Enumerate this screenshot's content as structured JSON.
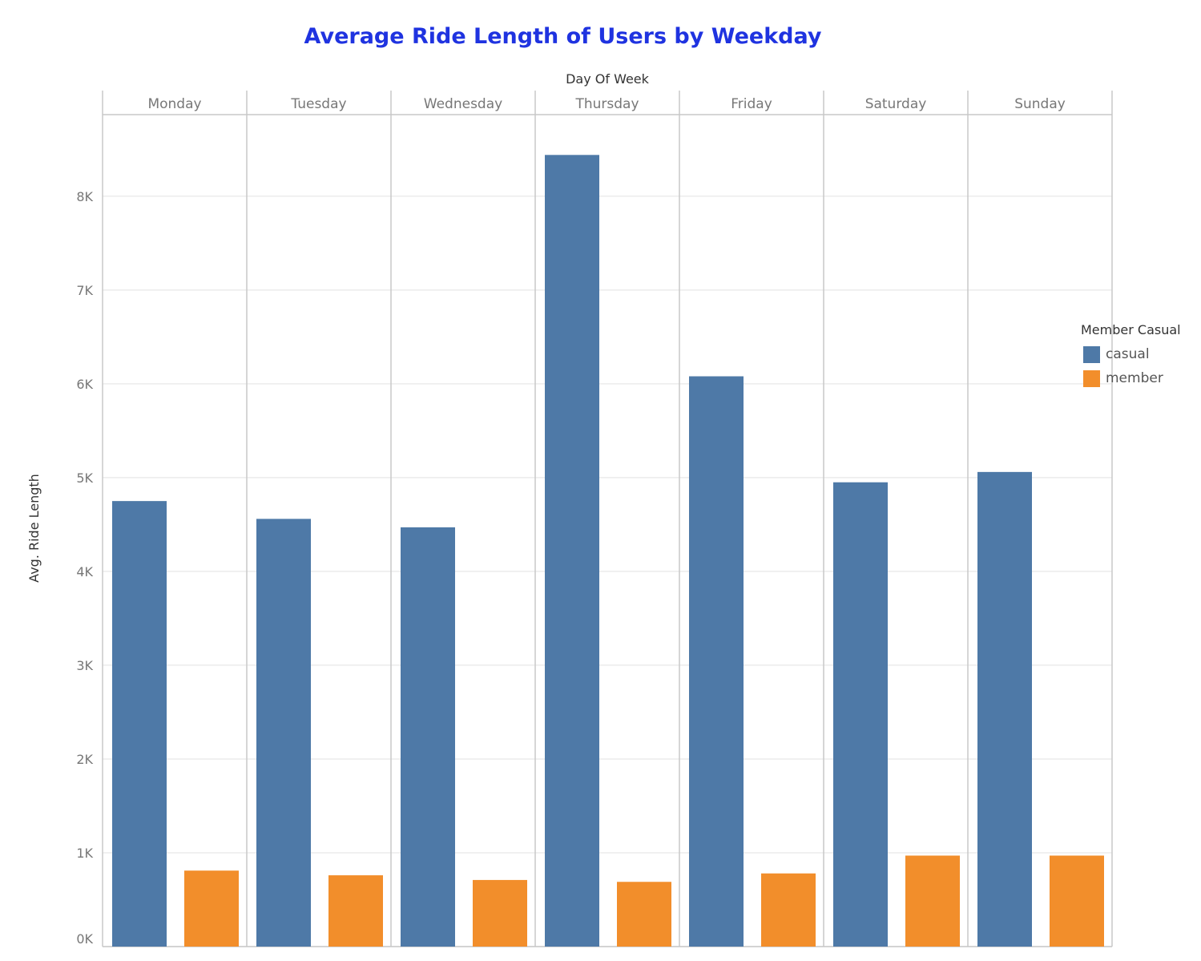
{
  "chart_data": {
    "type": "bar",
    "title": "Average Ride Length of Users by Weekday",
    "column_header": "Day Of Week",
    "categories": [
      "Monday",
      "Tuesday",
      "Wednesday",
      "Thursday",
      "Friday",
      "Saturday",
      "Sunday"
    ],
    "ylabel": "Avg. Ride Length",
    "ylim": [
      0,
      8870
    ],
    "yticks": [
      0,
      1000,
      2000,
      3000,
      4000,
      5000,
      6000,
      7000,
      8000
    ],
    "ytick_labels": [
      "0K",
      "1K",
      "2K",
      "3K",
      "4K",
      "5K",
      "6K",
      "7K",
      "8K"
    ],
    "grid": true,
    "legend_title": "Member Casual",
    "legend_position": "right",
    "series": [
      {
        "name": "casual",
        "color": "#4e79a7",
        "values": [
          4750,
          4560,
          4470,
          8440,
          6080,
          4950,
          5060
        ]
      },
      {
        "name": "member",
        "color": "#f28e2b",
        "values": [
          810,
          760,
          710,
          690,
          780,
          970,
          970
        ]
      }
    ]
  }
}
